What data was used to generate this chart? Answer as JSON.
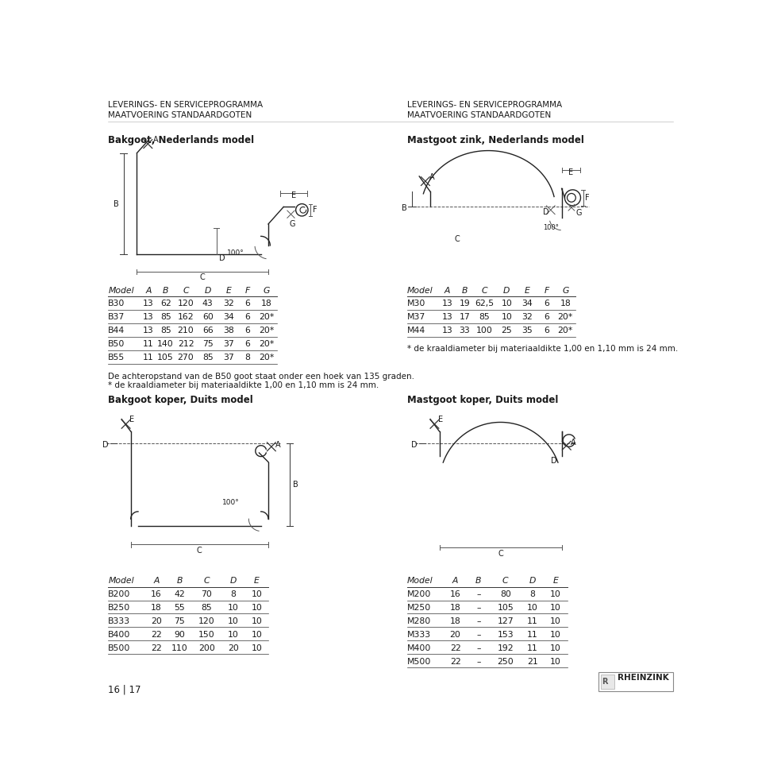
{
  "header_left_line1": "LEVERINGS- EN SERVICEPROGRAMMA",
  "header_left_line2": "MAATVOERING STANDAARDGOTEN",
  "header_right_line1": "LEVERINGS- EN SERVICEPROGRAMMA",
  "header_right_line2": "MAATVOERING STANDAARDGOTEN",
  "section1_left_title": "Bakgoot, Nederlands model",
  "section1_right_title": "Mastgoot zink, Nederlands model",
  "table1_left_headers": [
    "Model",
    "A",
    "B",
    "C",
    "D",
    "E",
    "F",
    "G"
  ],
  "table1_left_rows": [
    [
      "B30",
      "13",
      "62",
      "120",
      "43",
      "32",
      "6",
      "18"
    ],
    [
      "B37",
      "13",
      "85",
      "162",
      "60",
      "34",
      "6",
      "20*"
    ],
    [
      "B44",
      "13",
      "85",
      "210",
      "66",
      "38",
      "6",
      "20*"
    ],
    [
      "B50",
      "11",
      "140",
      "212",
      "75",
      "37",
      "6",
      "20*"
    ],
    [
      "B55",
      "11",
      "105",
      "270",
      "85",
      "37",
      "8",
      "20*"
    ]
  ],
  "table1_right_headers": [
    "Model",
    "A",
    "B",
    "C",
    "D",
    "E",
    "F",
    "G"
  ],
  "table1_right_rows": [
    [
      "M30",
      "13",
      "19",
      "62,5",
      "10",
      "34",
      "6",
      "18"
    ],
    [
      "M37",
      "13",
      "17",
      "85",
      "10",
      "32",
      "6",
      "20*"
    ],
    [
      "M44",
      "13",
      "33",
      "100",
      "25",
      "35",
      "6",
      "20*"
    ]
  ],
  "note1_right": "* de kraaldiameter bij materiaaldikte 1,00 en 1,10 mm is 24 mm.",
  "note_b50": "De achteropstand van de B50 goot staat onder een hoek van 135 graden.",
  "note_kraal": "* de kraaldiameter bij materiaaldikte 1,00 en 1,10 mm is 24 mm.",
  "section2_left_title": "Bakgoot koper, Duits model",
  "section2_right_title": "Mastgoot koper, Duits model",
  "table2_left_headers": [
    "Model",
    "A",
    "B",
    "C",
    "D",
    "E"
  ],
  "table2_left_rows": [
    [
      "B200",
      "16",
      "42",
      "70",
      "8",
      "10"
    ],
    [
      "B250",
      "18",
      "55",
      "85",
      "10",
      "10"
    ],
    [
      "B333",
      "20",
      "75",
      "120",
      "10",
      "10"
    ],
    [
      "B400",
      "22",
      "90",
      "150",
      "10",
      "10"
    ],
    [
      "B500",
      "22",
      "110",
      "200",
      "20",
      "10"
    ]
  ],
  "table2_right_headers": [
    "Model",
    "A",
    "B",
    "C",
    "D",
    "E"
  ],
  "table2_right_rows": [
    [
      "M200",
      "16",
      "–",
      "80",
      "8",
      "10"
    ],
    [
      "M250",
      "18",
      "–",
      "105",
      "10",
      "10"
    ],
    [
      "M280",
      "18",
      "–",
      "127",
      "11",
      "10"
    ],
    [
      "M333",
      "20",
      "–",
      "153",
      "11",
      "10"
    ],
    [
      "M400",
      "22",
      "–",
      "192",
      "11",
      "10"
    ],
    [
      "M500",
      "22",
      "–",
      "250",
      "21",
      "10"
    ]
  ],
  "footer_page": "16 | 17",
  "footer_brand": "RHEINZINK",
  "bg_color": "#ffffff",
  "text_color": "#1a1a1a",
  "line_color": "#333333",
  "header_font_size": 7.5,
  "title_font_size": 8.5,
  "table_font_size": 7.8,
  "note_font_size": 7.5
}
